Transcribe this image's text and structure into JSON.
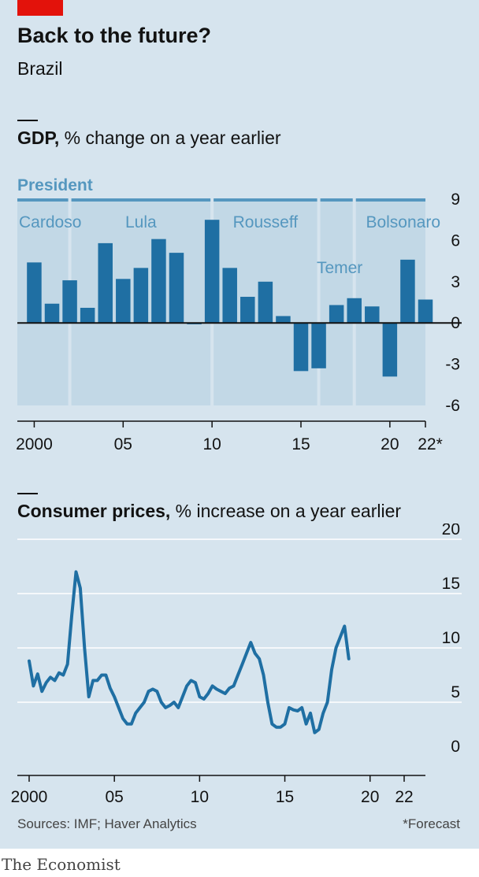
{
  "title": "Back to the future?",
  "subtitle": "Brazil",
  "sources": "Sources: IMF; Haver Analytics",
  "footnote": "*Forecast",
  "brand": "The Economist",
  "colors": {
    "bar": "#1f6fa3",
    "line": "#1f6fa3",
    "president_label": "#5597bf",
    "panel": "#d6e4ee",
    "president_band": "#c2d8e6",
    "accent": "#e3120b"
  },
  "gdp_title": {
    "bold": "GDP,",
    "rest": " % change on a year earlier"
  },
  "cpi_title": {
    "bold": "Consumer prices,",
    "rest": " % increase on a year earlier"
  },
  "chart_data": [
    {
      "type": "bar",
      "title": "GDP, % change on a year earlier",
      "x": [
        2000,
        2001,
        2002,
        2003,
        2004,
        2005,
        2006,
        2007,
        2008,
        2009,
        2010,
        2011,
        2012,
        2013,
        2014,
        2015,
        2016,
        2017,
        2018,
        2019,
        2020,
        2021,
        2022
      ],
      "values": [
        4.4,
        1.4,
        3.1,
        1.1,
        5.8,
        3.2,
        4.0,
        6.1,
        5.1,
        -0.1,
        7.5,
        4.0,
        1.9,
        3.0,
        0.5,
        -3.5,
        -3.3,
        1.3,
        1.8,
        1.2,
        -3.9,
        4.6,
        1.7
      ],
      "xticks": [
        "2000",
        "05",
        "10",
        "15",
        "20",
        "22*"
      ],
      "xtick_years": [
        2000,
        2005,
        2010,
        2015,
        2020,
        2022
      ],
      "yticks": [
        9,
        6,
        3,
        0,
        -3,
        -6
      ],
      "yticklabels": [
        "9",
        "6",
        "3",
        "0",
        "-3",
        "-6"
      ],
      "ylim": [
        -6,
        9
      ],
      "presidents_label": "President",
      "presidents": [
        {
          "name": "Cardoso",
          "start": 1999.55,
          "end": 2002.5
        },
        {
          "name": "Lula",
          "start": 2002.5,
          "end": 2010.5
        },
        {
          "name": "Rousseff",
          "start": 2010.5,
          "end": 2016.5
        },
        {
          "name": "Temer",
          "start": 2016.5,
          "end": 2018.5
        },
        {
          "name": "Bolsonaro",
          "start": 2018.5,
          "end": 2022.5
        }
      ],
      "forecast_year": 2022
    },
    {
      "type": "line",
      "title": "Consumer prices, % increase on a year earlier",
      "x_start": 2000,
      "points_per_year": 4,
      "values": [
        8.8,
        6.5,
        7.6,
        6.0,
        6.8,
        7.3,
        7.0,
        7.7,
        7.5,
        8.5,
        13.0,
        17.0,
        15.5,
        10.0,
        5.5,
        7.0,
        7.0,
        7.5,
        7.5,
        6.3,
        5.5,
        4.5,
        3.5,
        3.0,
        3.0,
        4.0,
        4.5,
        5.0,
        6.0,
        6.2,
        6.0,
        5.0,
        4.5,
        4.7,
        5.0,
        4.5,
        5.5,
        6.5,
        7.0,
        6.8,
        5.5,
        5.3,
        5.8,
        6.5,
        6.2,
        6.0,
        5.8,
        6.3,
        6.5,
        7.5,
        8.5,
        9.5,
        10.5,
        9.5,
        9.0,
        7.5,
        5.0,
        3.0,
        2.7,
        2.7,
        3.0,
        4.5,
        4.3,
        4.2,
        4.5,
        3.0,
        4.0,
        2.2,
        2.5,
        4.0,
        5.0,
        8.0,
        10.0,
        11.0,
        12.0,
        9.0
      ],
      "xticks": [
        "2000",
        "05",
        "10",
        "15",
        "20",
        "22"
      ],
      "xtick_years": [
        2000,
        2005,
        2010,
        2015,
        2020,
        2022
      ],
      "yticks": [
        20,
        15,
        10,
        5,
        0
      ],
      "yticklabels": [
        "20",
        "15",
        "10",
        "5",
        "0"
      ],
      "ylim": [
        0,
        20
      ]
    }
  ]
}
